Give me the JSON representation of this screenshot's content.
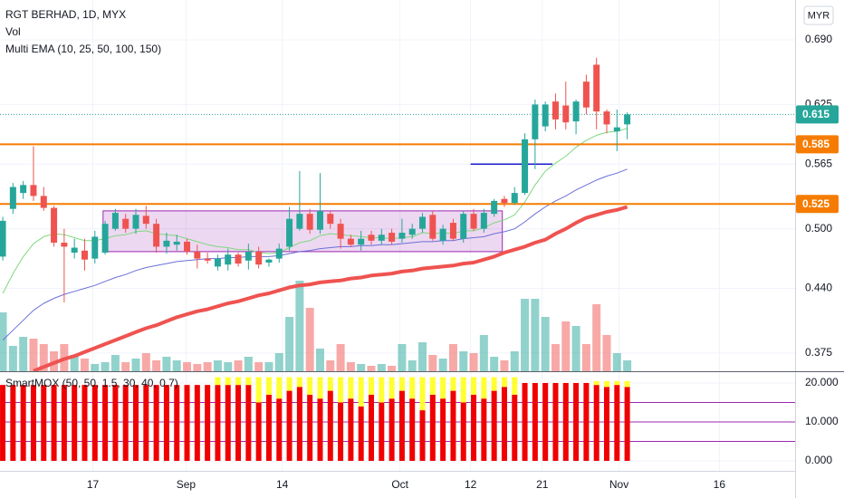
{
  "chart_data": [
    {
      "type": "candlestick",
      "title": "RGT BERHAD, 1D, MYX",
      "volume_label": "Vol",
      "ema_label": "Multi EMA (10, 25, 50, 100, 150)",
      "currency": "MYR",
      "xlim": [
        -0.27,
        77.4
      ],
      "xticks": [
        {
          "value": 8.8,
          "label": "17"
        },
        {
          "value": 17.9,
          "label": "Sep"
        },
        {
          "value": 27.3,
          "label": "14"
        },
        {
          "value": 38.8,
          "label": "Oct"
        },
        {
          "value": 45.7,
          "label": "12"
        },
        {
          "value": 52.7,
          "label": "21"
        },
        {
          "value": 60.2,
          "label": "Nov"
        },
        {
          "value": 70,
          "label": "16"
        }
      ],
      "ylim": [
        0.3567,
        0.7301
      ],
      "yticks": [
        {
          "value": 0.69,
          "label": "0.690"
        },
        0.625,
        0.565,
        {
          "value": 0.5,
          "label": "0.500"
        },
        {
          "value": 0.44,
          "label": "0.440"
        },
        0.375
      ],
      "grid": true,
      "up_color": "#26a69a",
      "down_color": "#ef5350",
      "open": [
        0.472,
        0.52,
        0.536,
        0.544,
        0.533,
        0.521,
        0.486,
        0.476,
        0.478,
        0.47,
        0.476,
        0.5,
        0.51,
        0.5,
        0.513,
        0.505,
        0.482,
        0.484,
        0.487,
        0.477,
        0.47,
        0.462,
        0.464,
        0.474,
        0.468,
        0.477,
        0.466,
        0.47,
        0.482,
        0.5,
        0.515,
        0.499,
        0.515,
        0.505,
        0.49,
        0.484,
        0.494,
        0.488,
        0.496,
        0.49,
        0.494,
        0.5,
        0.514,
        0.488,
        0.506,
        0.49,
        0.515,
        0.5,
        0.515,
        0.53,
        0.526,
        0.536,
        0.59,
        0.603,
        0.628,
        0.624,
        0.608,
        0.648,
        0.665,
        0.618,
        0.598,
        0.605
      ],
      "high": [
        0.512,
        0.546,
        0.548,
        0.583,
        0.542,
        0.523,
        0.5,
        0.49,
        0.49,
        0.498,
        0.508,
        0.52,
        0.515,
        0.52,
        0.523,
        0.51,
        0.496,
        0.494,
        0.49,
        0.484,
        0.476,
        0.474,
        0.48,
        0.476,
        0.485,
        0.482,
        0.47,
        0.485,
        0.522,
        0.558,
        0.52,
        0.556,
        0.518,
        0.51,
        0.494,
        0.498,
        0.498,
        0.5,
        0.5,
        0.51,
        0.505,
        0.516,
        0.518,
        0.504,
        0.51,
        0.518,
        0.52,
        0.52,
        0.53,
        0.533,
        0.542,
        0.596,
        0.63,
        0.628,
        0.636,
        0.648,
        0.63,
        0.655,
        0.672,
        0.62,
        0.62,
        0.617
      ],
      "low": [
        0.468,
        0.515,
        0.53,
        0.528,
        0.518,
        0.482,
        0.426,
        0.47,
        0.458,
        0.465,
        0.474,
        0.498,
        0.496,
        0.495,
        0.5,
        0.476,
        0.475,
        0.478,
        0.474,
        0.46,
        0.465,
        0.458,
        0.458,
        0.462,
        0.459,
        0.46,
        0.462,
        0.466,
        0.478,
        0.498,
        0.495,
        0.495,
        0.5,
        0.48,
        0.482,
        0.478,
        0.484,
        0.484,
        0.484,
        0.486,
        0.49,
        0.496,
        0.488,
        0.484,
        0.488,
        0.486,
        0.498,
        0.496,
        0.512,
        0.522,
        0.524,
        0.534,
        0.56,
        0.598,
        0.6,
        0.6,
        0.595,
        0.615,
        0.6,
        0.596,
        0.578,
        0.59
      ],
      "close": [
        0.508,
        0.542,
        0.544,
        0.533,
        0.521,
        0.486,
        0.482,
        0.481,
        0.469,
        0.492,
        0.505,
        0.516,
        0.5,
        0.514,
        0.505,
        0.482,
        0.488,
        0.487,
        0.477,
        0.47,
        0.468,
        0.47,
        0.474,
        0.465,
        0.477,
        0.464,
        0.469,
        0.48,
        0.51,
        0.515,
        0.499,
        0.518,
        0.505,
        0.49,
        0.484,
        0.49,
        0.488,
        0.494,
        0.487,
        0.496,
        0.5,
        0.512,
        0.49,
        0.5,
        0.49,
        0.515,
        0.5,
        0.516,
        0.528,
        0.526,
        0.536,
        0.59,
        0.625,
        0.625,
        0.61,
        0.607,
        0.628,
        0.622,
        0.618,
        0.605,
        0.602,
        0.615
      ],
      "volume_lim": [
        0,
        410
      ],
      "volume": [
        65,
        28,
        38,
        36,
        30,
        22,
        30,
        18,
        14,
        8,
        10,
        18,
        10,
        14,
        20,
        12,
        16,
        12,
        10,
        8,
        10,
        12,
        10,
        12,
        16,
        10,
        10,
        20,
        60,
        100,
        70,
        25,
        12,
        30,
        10,
        8,
        6,
        8,
        6,
        30,
        12,
        32,
        18,
        14,
        30,
        22,
        20,
        40,
        16,
        12,
        22,
        80,
        80,
        60,
        30,
        55,
        50,
        30,
        74,
        40,
        20,
        12
      ],
      "series": [
        {
          "color": "#7ed87e",
          "width": 1,
          "values": [
            0.435,
            0.455,
            0.472,
            0.485,
            0.492,
            0.495,
            0.494,
            0.491,
            0.488,
            0.488,
            0.49,
            0.493,
            0.494,
            0.497,
            0.498,
            0.495,
            0.494,
            0.493,
            0.49,
            0.487,
            0.484,
            0.482,
            0.481,
            0.479,
            0.479,
            0.476,
            0.475,
            0.476,
            0.481,
            0.486,
            0.488,
            0.493,
            0.495,
            0.494,
            0.493,
            0.492,
            0.491,
            0.491,
            0.49,
            0.491,
            0.492,
            0.496,
            0.495,
            0.496,
            0.495,
            0.498,
            0.498,
            0.501,
            0.506,
            0.509,
            0.514,
            0.527,
            0.544,
            0.558,
            0.566,
            0.573,
            0.582,
            0.589,
            0.594,
            0.597,
            0.598,
            0.601
          ]
        },
        {
          "color": "#6b6fd8",
          "width": 1,
          "values": [
            0.388,
            0.398,
            0.408,
            0.418,
            0.425,
            0.43,
            0.434,
            0.437,
            0.44,
            0.443,
            0.447,
            0.451,
            0.454,
            0.458,
            0.461,
            0.463,
            0.465,
            0.467,
            0.468,
            0.469,
            0.47,
            0.47,
            0.471,
            0.471,
            0.472,
            0.472,
            0.472,
            0.473,
            0.475,
            0.477,
            0.478,
            0.48,
            0.481,
            0.482,
            0.482,
            0.483,
            0.483,
            0.484,
            0.484,
            0.485,
            0.486,
            0.487,
            0.487,
            0.488,
            0.488,
            0.49,
            0.491,
            0.492,
            0.495,
            0.497,
            0.5,
            0.507,
            0.515,
            0.522,
            0.528,
            0.533,
            0.539,
            0.544,
            0.549,
            0.553,
            0.556,
            0.56
          ]
        },
        {
          "color": "#ef5350",
          "width": 4,
          "values": [
            null,
            null,
            null,
            0.357,
            0.361,
            0.365,
            0.369,
            0.372,
            0.376,
            0.38,
            0.384,
            0.388,
            0.392,
            0.396,
            0.4,
            0.403,
            0.407,
            0.411,
            0.414,
            0.417,
            0.419,
            0.422,
            0.425,
            0.427,
            0.43,
            0.433,
            0.435,
            0.438,
            0.441,
            0.443,
            0.444,
            0.446,
            0.447,
            0.448,
            0.45,
            0.451,
            0.453,
            0.454,
            0.455,
            0.457,
            0.458,
            0.46,
            0.461,
            0.462,
            0.463,
            0.465,
            0.466,
            0.469,
            0.472,
            0.476,
            0.479,
            0.482,
            0.486,
            0.489,
            0.495,
            0.5,
            0.506,
            0.511,
            0.514,
            0.517,
            0.519,
            0.522
          ]
        }
      ],
      "levels": [
        {
          "value": 0.585,
          "color": "#f57c00",
          "style": "solid"
        },
        {
          "value": 0.525,
          "color": "#f57c00",
          "style": "solid"
        },
        {
          "value": 0.615,
          "color": "#26a69a",
          "style": "dotted"
        }
      ],
      "box": {
        "x": [
          9.8,
          48.8
        ],
        "y": [
          0.477,
          0.518
        ],
        "color": "#9c27b0"
      },
      "segment": {
        "x": [
          45.7,
          53.7
        ],
        "y": 0.565,
        "color": "#1a1acd"
      }
    },
    {
      "type": "stacked_bar",
      "title": "SmartMOX (50, 50, 1.5, 30, 40, 0.7)",
      "ylim": [
        -2.56,
        23.02
      ],
      "yticks": [
        {
          "value": 20,
          "label": "20.000"
        },
        {
          "value": 10,
          "label": "10.000"
        },
        {
          "value": 0,
          "label": "0.000"
        }
      ],
      "hlines": [
        15,
        10,
        5
      ],
      "hline_color": "#9c27b0",
      "series": [
        {
          "color": "#f00000",
          "values": [
            19.5,
            19.5,
            19.5,
            19.5,
            19.5,
            19.5,
            19.5,
            19.5,
            19.5,
            19.5,
            19.5,
            19.5,
            19.5,
            19.5,
            19.5,
            19.5,
            19.5,
            19.5,
            19.5,
            19.5,
            19.5,
            19.5,
            19.5,
            19.5,
            19.5,
            15,
            17,
            16,
            18,
            19,
            17,
            16,
            18,
            15,
            16,
            14,
            17,
            15,
            16,
            18,
            16,
            13,
            17,
            16,
            18,
            15,
            17,
            16,
            18,
            19,
            17,
            20,
            20,
            20,
            20,
            20,
            20,
            20,
            19.5,
            19,
            19.5,
            19
          ]
        },
        {
          "color": "#ffff33",
          "values": [
            0,
            0,
            0,
            0,
            0,
            0,
            0,
            0,
            0,
            0,
            0,
            0,
            0,
            0,
            0,
            0,
            0,
            0,
            0,
            0,
            0,
            2,
            2,
            2,
            2,
            6.5,
            4.5,
            5.5,
            3.5,
            2.5,
            4.5,
            5.5,
            3.5,
            6.5,
            5.5,
            7.5,
            4.5,
            6.5,
            5.5,
            3.5,
            5.5,
            8.5,
            4.5,
            5.5,
            3.5,
            6.5,
            4.5,
            5.5,
            3.5,
            2.5,
            4.5,
            0,
            0,
            0,
            0,
            0,
            0,
            0,
            1,
            1.5,
            1,
            1.5
          ]
        }
      ]
    }
  ]
}
